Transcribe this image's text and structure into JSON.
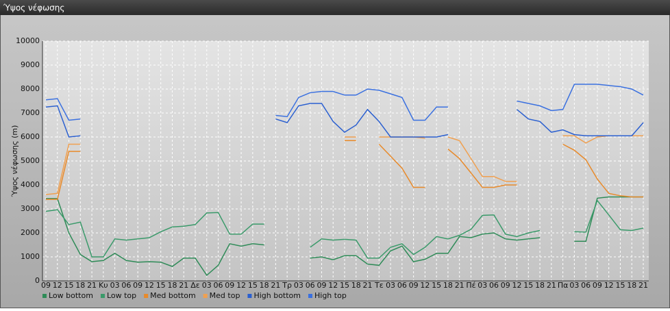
{
  "chart_data": {
    "type": "line",
    "title": "Ύψος νέφωσης",
    "y_label": "Ύψος νέφωσης (m)",
    "categories": [
      "09",
      "12",
      "15",
      "18",
      "21",
      "Κυ",
      "03",
      "06",
      "09",
      "12",
      "15",
      "18",
      "21",
      "Δε",
      "03",
      "06",
      "09",
      "12",
      "15",
      "18",
      "21",
      "Τρ",
      "03",
      "06",
      "09",
      "12",
      "15",
      "18",
      "21",
      "Τε",
      "03",
      "06",
      "09",
      "12",
      "15",
      "18",
      "21",
      "Πέ",
      "03",
      "06",
      "09",
      "12",
      "15",
      "18",
      "21",
      "Πα",
      "03",
      "06",
      "09",
      "12",
      "15",
      "18",
      "21"
    ],
    "ylim": [
      0,
      10000
    ],
    "yticks": [
      0,
      1000,
      2000,
      3000,
      4000,
      5000,
      6000,
      7000,
      8000,
      9000,
      10000
    ],
    "grid": true,
    "legend": "bottom",
    "series": [
      {
        "name": "Low bottom",
        "color": "#2e8b57",
        "values": [
          3430,
          3430,
          2000,
          1100,
          800,
          850,
          1150,
          850,
          780,
          800,
          780,
          600,
          950,
          950,
          230,
          650,
          1550,
          1450,
          1550,
          1500,
          null,
          null,
          null,
          950,
          1000,
          880,
          1050,
          1050,
          700,
          650,
          1250,
          1450,
          800,
          900,
          1150,
          1150,
          1850,
          1800,
          1950,
          2000,
          1750,
          1700,
          1750,
          1800,
          null,
          null,
          1650,
          1650,
          3450,
          3500,
          3500,
          3500,
          3500
        ]
      },
      {
        "name": "Low top",
        "color": "#3a9a6a",
        "values": [
          2900,
          2970,
          2350,
          2450,
          1000,
          1000,
          1750,
          1700,
          1750,
          1800,
          2050,
          2250,
          2280,
          2350,
          2830,
          2850,
          1950,
          1950,
          2370,
          2370,
          null,
          null,
          null,
          1400,
          1750,
          1700,
          1730,
          1700,
          950,
          950,
          1400,
          1550,
          1100,
          1400,
          1850,
          1750,
          1900,
          2150,
          2730,
          2750,
          1950,
          1850,
          2000,
          2100,
          null,
          null,
          2050,
          2030,
          3350,
          2750,
          2130,
          2100,
          2200
        ]
      },
      {
        "name": "Med bottom",
        "color": "#e88a2a",
        "values": [
          3400,
          3400,
          5400,
          5400,
          null,
          null,
          null,
          null,
          null,
          null,
          null,
          null,
          null,
          null,
          null,
          null,
          null,
          null,
          null,
          null,
          null,
          null,
          null,
          null,
          null,
          null,
          5850,
          5850,
          null,
          5700,
          5200,
          4700,
          3900,
          3900,
          null,
          5500,
          5100,
          4500,
          3900,
          3900,
          4000,
          4000,
          null,
          null,
          null,
          5700,
          5450,
          5050,
          4250,
          3650,
          3550,
          3500,
          3500
        ]
      },
      {
        "name": "Med top",
        "color": "#f0a050",
        "values": [
          3600,
          3650,
          5700,
          5700,
          null,
          null,
          null,
          null,
          null,
          null,
          null,
          null,
          null,
          null,
          null,
          null,
          null,
          null,
          null,
          null,
          null,
          null,
          null,
          null,
          null,
          null,
          6000,
          6000,
          null,
          6000,
          6000,
          6000,
          6000,
          5950,
          null,
          6000,
          5850,
          5100,
          4350,
          4350,
          4150,
          4150,
          null,
          null,
          null,
          6050,
          6050,
          5750,
          6000,
          6050,
          6050,
          6050,
          6050
        ]
      },
      {
        "name": "High bottom",
        "color": "#2a5fd0",
        "values": [
          7250,
          7300,
          6000,
          6050,
          null,
          null,
          null,
          null,
          null,
          null,
          null,
          null,
          null,
          null,
          null,
          null,
          null,
          null,
          null,
          null,
          6750,
          6600,
          7300,
          7400,
          7400,
          6650,
          6200,
          6500,
          7150,
          6650,
          6000,
          6000,
          6000,
          6000,
          6000,
          6100,
          null,
          null,
          null,
          null,
          null,
          7150,
          6750,
          6650,
          6200,
          6300,
          6100,
          6050,
          6050,
          6050,
          6050,
          6050,
          6600
        ]
      },
      {
        "name": "High top",
        "color": "#3a70e0",
        "values": [
          7550,
          7600,
          6700,
          6750,
          null,
          null,
          null,
          null,
          null,
          null,
          null,
          null,
          null,
          null,
          null,
          null,
          null,
          null,
          null,
          null,
          6900,
          6850,
          7650,
          7850,
          7900,
          7900,
          7750,
          7750,
          8000,
          7950,
          7800,
          7650,
          6700,
          6700,
          7250,
          7250,
          null,
          null,
          null,
          null,
          null,
          7500,
          7400,
          7300,
          7100,
          7150,
          8200,
          8200,
          8200,
          8150,
          8100,
          8000,
          7750
        ]
      }
    ]
  }
}
